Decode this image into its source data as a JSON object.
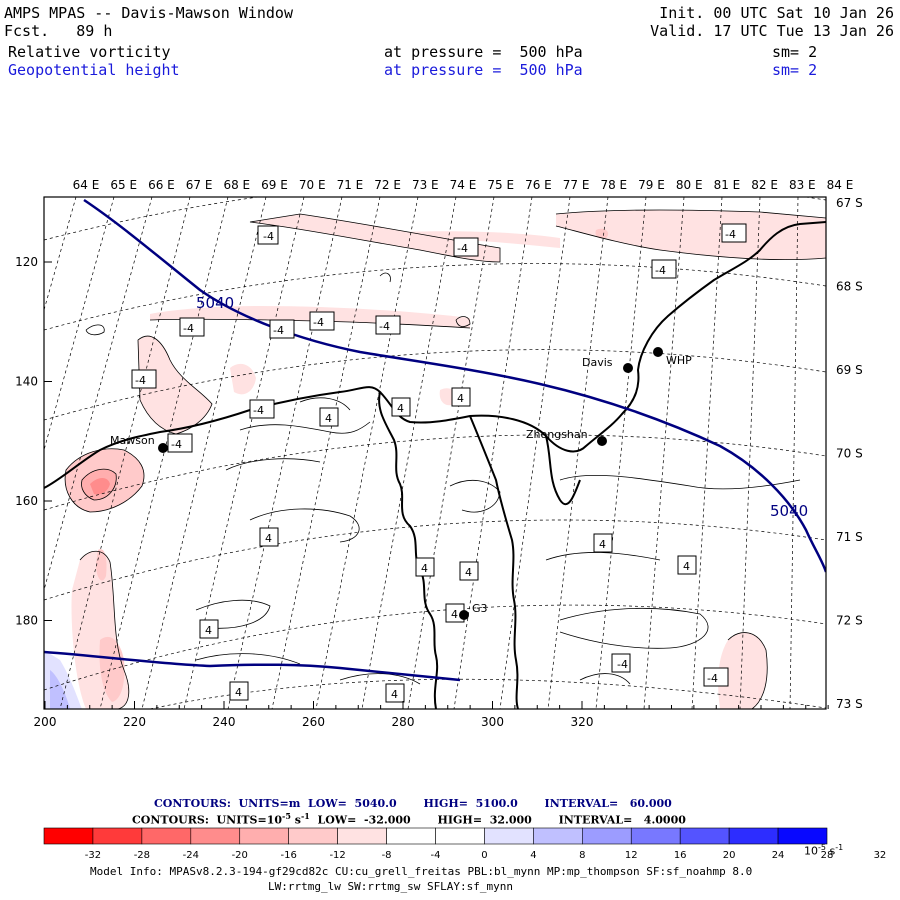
{
  "header": {
    "title": "AMPS MPAS -- Davis-Mawson Window",
    "fcst": "Fcst.   89 h",
    "init": "Init. 00 UTC Sat 10 Jan 26",
    "valid": "Valid. 17 UTC Tue 13 Jan 26",
    "field1": {
      "name": "Relative vorticity",
      "pressure": "at pressure =  500 hPa",
      "sm": "sm= 2"
    },
    "field2": {
      "name": "Geopotential height",
      "pressure": "at pressure =  500 hPa",
      "sm": "sm= 2"
    }
  },
  "colors": {
    "blue_text": "#1a1adb",
    "height_contour": "#000080"
  },
  "map": {
    "top_longitudes": [
      "64 E",
      "65 E",
      "66 E",
      "67 E",
      "68 E",
      "69 E",
      "70 E",
      "71 E",
      "72 E",
      "73 E",
      "74 E",
      "75 E",
      "76 E",
      "77 E",
      "78 E",
      "79 E",
      "80 E",
      "81 E",
      "82 E",
      "83 E",
      "84 E"
    ],
    "right_latitudes": [
      "67 S",
      "68 S",
      "69 S",
      "70 S",
      "71 S",
      "72 S",
      "73 S"
    ],
    "x_ticks": [
      "200",
      "220",
      "240",
      "260",
      "280",
      "300",
      "320"
    ],
    "y_ticks": [
      "120",
      "140",
      "160",
      "180"
    ],
    "height_labels": [
      "5040",
      "5040"
    ],
    "vort_labels": [
      "-4",
      "-4",
      "-4",
      "-4",
      "-4",
      "-4",
      "-4",
      "-4",
      "-4",
      "-4",
      "-4",
      "4",
      "4",
      "4",
      "4",
      "4",
      "4",
      "4",
      "4",
      "4",
      "4",
      "4",
      "-4",
      "-4"
    ],
    "stations": [
      {
        "name": "Mawson"
      },
      {
        "name": "Davis"
      },
      {
        "name": "WHP"
      },
      {
        "name": "Zhongshan"
      },
      {
        "name": "G3"
      }
    ]
  },
  "contour_info": {
    "line1": "CONTOURS:  UNITS=m  LOW=  5040.0       HIGH=  5100.0       INTERVAL=   60.000",
    "line2": "CONTOURS:  UNITS=10",
    "line2_exp": "-5",
    "line2_unit": " s",
    "line2_unit_exp": "-1",
    "line2_rest": "  LOW=  -32.000       HIGH=  32.000       INTERVAL=   4.0000"
  },
  "colorbar": {
    "colors": [
      "#ff0000",
      "#ff3a3a",
      "#ff6868",
      "#ff8c8c",
      "#ffaeae",
      "#ffcaca",
      "#ffe2e2",
      "#ffffff",
      "#ffffff",
      "#e2e2ff",
      "#c0c0ff",
      "#9c9cff",
      "#7878ff",
      "#5454ff",
      "#2d2dff",
      "#0808ff"
    ],
    "ticks": [
      "-32",
      "-28",
      "-24",
      "-20",
      "-16",
      "-12",
      "-8",
      "-4",
      "0",
      "4",
      "8",
      "12",
      "16",
      "20",
      "24",
      "28",
      "32"
    ],
    "unit": "10",
    "unit_exp": "-5",
    "unit_s": " s",
    "unit_s_exp": "-1"
  },
  "footer": {
    "line1": "Model Info: MPASv8.2.3-194-gf29cd82c CU:cu_grell_freitas PBL:bl_mynn MP:mp_thompson SF:sf_noahmp 8.0",
    "line2": "LW:rrtmg_lw SW:rrtmg_sw SFLAY:sf_mynn"
  }
}
